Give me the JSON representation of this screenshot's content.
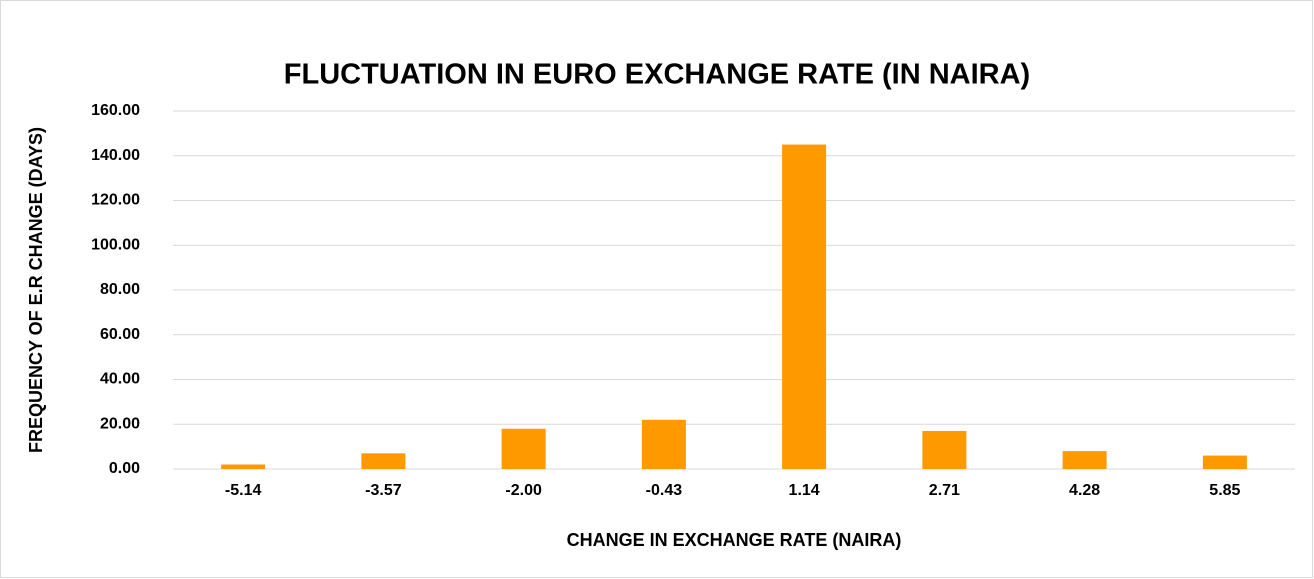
{
  "chart_data": {
    "type": "bar",
    "title": "FLUCTUATION IN EURO EXCHANGE RATE (IN NAIRA)",
    "x_label": "CHANGE IN EXCHANGE RATE (NAIRA)",
    "y_label": "FREQUENCY OF E.R CHANGE (DAYS)",
    "categories": [
      "-5.14",
      "-3.57",
      "-2.00",
      "-0.43",
      "1.14",
      "2.71",
      "4.28",
      "5.85"
    ],
    "values": [
      2,
      7,
      18,
      22,
      145,
      17,
      8,
      6
    ],
    "color": "#ff9900",
    "ylim": [
      0,
      160
    ],
    "yticks": [
      {
        "value": 0,
        "label": "0.00"
      },
      {
        "value": 20,
        "label": "20.00"
      },
      {
        "value": 40,
        "label": "40.00"
      },
      {
        "value": 60,
        "label": "60.00"
      },
      {
        "value": 80,
        "label": "80.00"
      },
      {
        "value": 100,
        "label": "100.00"
      },
      {
        "value": 120,
        "label": "120.00"
      },
      {
        "value": 140,
        "label": "140.00"
      },
      {
        "value": 160,
        "label": "160.00"
      }
    ],
    "grid": true
  }
}
